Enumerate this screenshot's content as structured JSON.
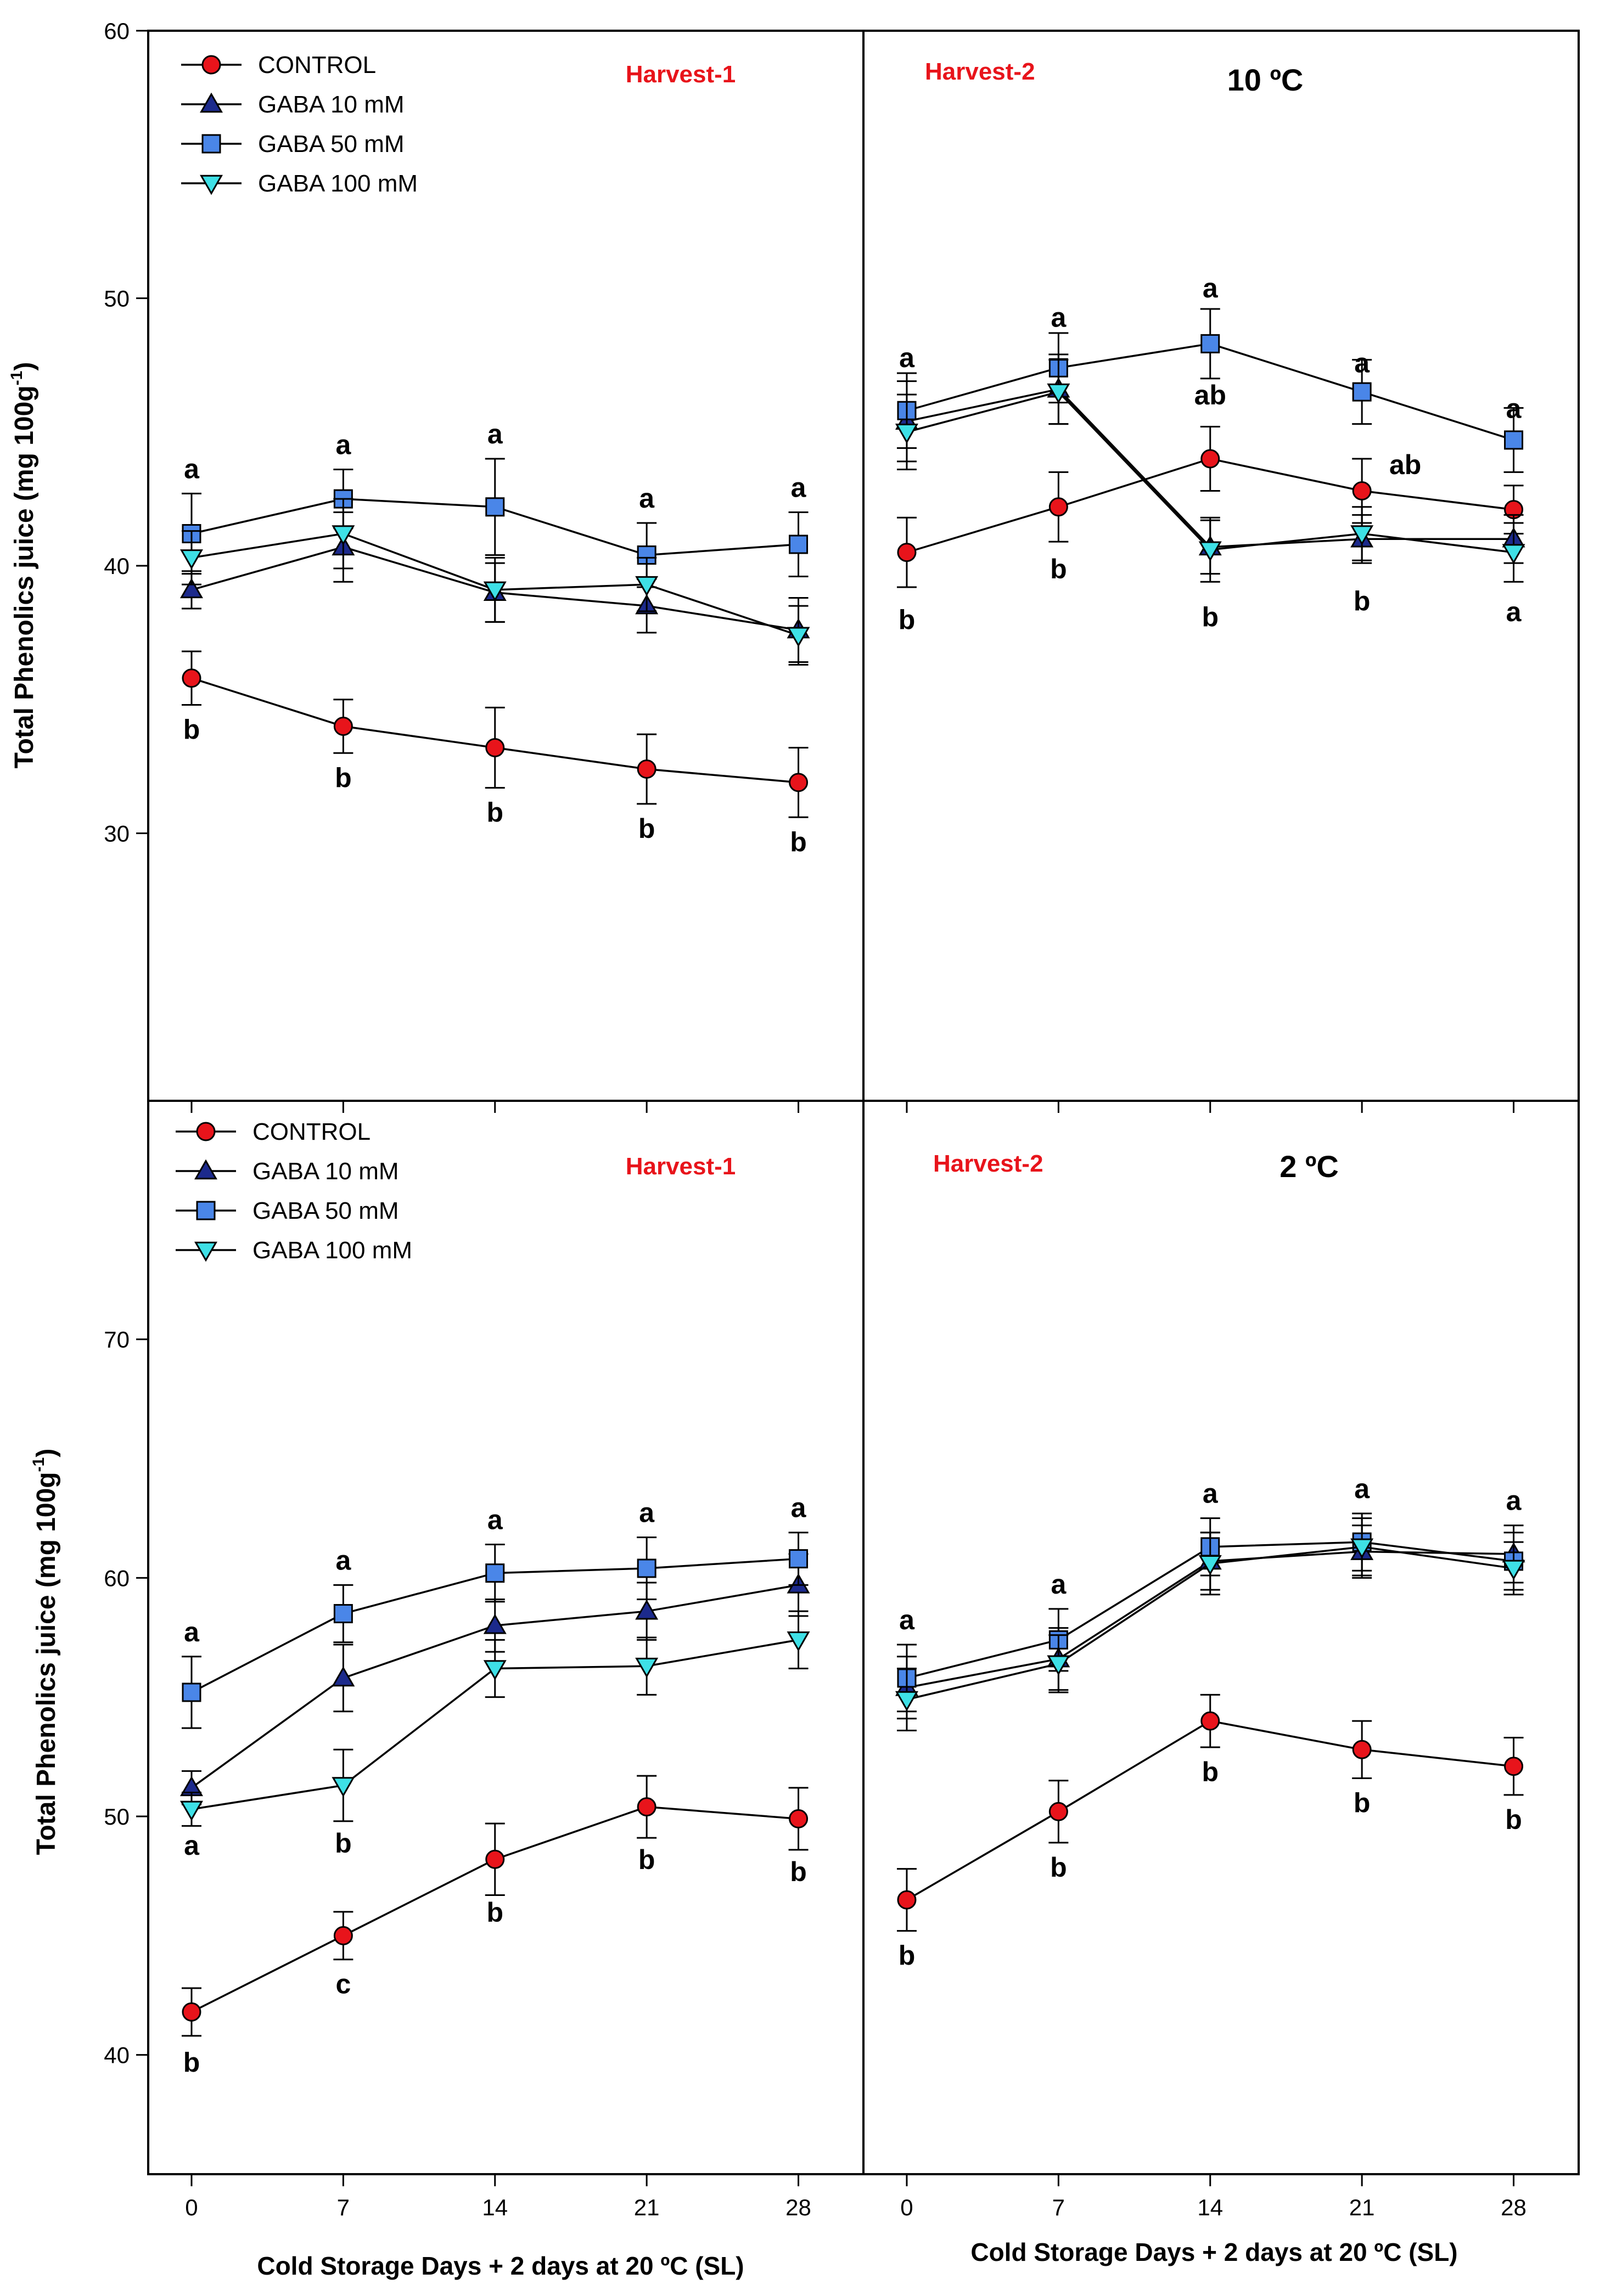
{
  "figure": {
    "ylabel_top": "Total Phenolics juice (mg 100g",
    "ylabel_bottom": "Total Phenolics juice (mg 100g",
    "ylabel_sup": "-1",
    "ylabel_close": ")",
    "xlabel": "Cold Storage Days + 2 days at 20 ºC (SL)"
  },
  "colors": {
    "control": "#e8141b",
    "gaba10": "#1c2a8c",
    "gaba50": "#4a86e8",
    "gaba100": "#3ee0e6",
    "harvest_label": "#e8141b"
  },
  "legend": {
    "entries": [
      "CONTROL",
      "GABA 10 mM",
      "GABA 50 mM",
      "GABA 100 mM"
    ],
    "markers": [
      "circle",
      "triangle-up",
      "square",
      "triangle-down"
    ]
  },
  "chart_data": [
    {
      "type": "line",
      "panel": "top-left",
      "title": "Harvest-1",
      "condition": "",
      "x": [
        0,
        7,
        14,
        21,
        28
      ],
      "xlim": [
        -2,
        31
      ],
      "ylim": [
        20,
        60
      ],
      "yticks": [
        30,
        40,
        50,
        60
      ],
      "ytick_labels": [
        "30",
        "40",
        "50",
        "60"
      ],
      "xticks": [
        0,
        7,
        14,
        21,
        28
      ],
      "series": [
        {
          "name": "CONTROL",
          "values": [
            35.8,
            34.0,
            33.2,
            32.4,
            31.9
          ],
          "errors": [
            1.0,
            1.0,
            1.5,
            1.3,
            1.3
          ]
        },
        {
          "name": "GABA 10 mM",
          "values": [
            39.1,
            40.7,
            39.0,
            38.5,
            37.6
          ],
          "errors": [
            0.7,
            1.3,
            1.1,
            1.0,
            1.2
          ]
        },
        {
          "name": "GABA 50 mM",
          "values": [
            41.2,
            42.5,
            42.2,
            40.4,
            40.8
          ],
          "errors": [
            1.5,
            1.1,
            1.8,
            1.2,
            1.2
          ]
        },
        {
          "name": "GABA 100 mM",
          "values": [
            40.3,
            41.2,
            39.1,
            39.3,
            37.4
          ],
          "errors": [
            1.0,
            1.3,
            1.2,
            1.0,
            1.1
          ]
        }
      ],
      "annotations_above": [
        "a",
        "a",
        "a",
        "a",
        "a"
      ],
      "annotations_below": [
        "b",
        "b",
        "b",
        "b",
        "b"
      ]
    },
    {
      "type": "line",
      "panel": "top-right",
      "title": "Harvest-2",
      "condition": "10 ºC",
      "x": [
        0,
        7,
        14,
        21,
        28
      ],
      "xlim": [
        -2,
        31
      ],
      "ylim": [
        20,
        60
      ],
      "yticks": [
        30,
        40,
        50,
        60
      ],
      "xticks": [
        0,
        7,
        14,
        21,
        28
      ],
      "series": [
        {
          "name": "CONTROL",
          "values": [
            40.5,
            42.2,
            44.0,
            42.8,
            42.1
          ],
          "errors": [
            1.3,
            1.3,
            1.2,
            1.2,
            0.9
          ]
        },
        {
          "name": "GABA 10 mM",
          "values": [
            45.4,
            46.6,
            40.7,
            41.0,
            41.0
          ],
          "errors": [
            1.5,
            1.3,
            1.0,
            0.9,
            0.9
          ]
        },
        {
          "name": "GABA 50 mM",
          "values": [
            45.8,
            47.4,
            48.3,
            46.5,
            44.7
          ],
          "errors": [
            1.4,
            1.3,
            1.3,
            1.2,
            1.2
          ]
        },
        {
          "name": "GABA 100 mM",
          "values": [
            45.0,
            46.5,
            40.6,
            41.2,
            40.5
          ],
          "errors": [
            1.4,
            1.2,
            1.2,
            1.0,
            1.1
          ]
        }
      ],
      "annotations": [
        {
          "x": 0,
          "y": 47.8,
          "text": "a"
        },
        {
          "x": 0,
          "y": 38.0,
          "text": "b"
        },
        {
          "x": 7,
          "y": 49.3,
          "text": "a"
        },
        {
          "x": 7,
          "y": 39.9,
          "text": "b"
        },
        {
          "x": 14,
          "y": 50.4,
          "text": "a"
        },
        {
          "x": 14,
          "y": 46.4,
          "text": "ab"
        },
        {
          "x": 14,
          "y": 38.1,
          "text": "b"
        },
        {
          "x": 21,
          "y": 47.6,
          "text": "a"
        },
        {
          "x": 23,
          "y": 43.8,
          "text": "ab"
        },
        {
          "x": 21,
          "y": 38.7,
          "text": "b"
        },
        {
          "x": 28,
          "y": 45.9,
          "text": "a"
        },
        {
          "x": 28,
          "y": 38.3,
          "text": "a"
        }
      ]
    },
    {
      "type": "line",
      "panel": "bottom-left",
      "title": "Harvest-1",
      "condition": "",
      "x": [
        0,
        7,
        14,
        21,
        28
      ],
      "xlim": [
        -2,
        31
      ],
      "ylim": [
        35,
        80
      ],
      "yticks": [
        40,
        50,
        60,
        70
      ],
      "ytick_labels": [
        "40",
        "50",
        "60",
        "70"
      ],
      "xticks": [
        0,
        7,
        14,
        21,
        28
      ],
      "xtick_labels": [
        "0",
        "7",
        "14",
        "21",
        "28"
      ],
      "series": [
        {
          "name": "CONTROL",
          "values": [
            41.8,
            45.0,
            48.2,
            50.4,
            49.9
          ],
          "errors": [
            1.0,
            1.0,
            1.5,
            1.3,
            1.3
          ]
        },
        {
          "name": "GABA 10 mM",
          "values": [
            51.2,
            55.8,
            58.0,
            58.6,
            59.7
          ],
          "errors": [
            0.7,
            1.4,
            1.1,
            1.2,
            1.3
          ]
        },
        {
          "name": "GABA 50 mM",
          "values": [
            55.2,
            58.5,
            60.2,
            60.4,
            60.8
          ],
          "errors": [
            1.5,
            1.2,
            1.2,
            1.3,
            1.1
          ]
        },
        {
          "name": "GABA 100 mM",
          "values": [
            50.3,
            51.3,
            56.2,
            56.3,
            57.4
          ],
          "errors": [
            0.7,
            1.5,
            1.2,
            1.2,
            1.2
          ]
        }
      ],
      "annotations_above": [
        "a",
        "a",
        "a",
        "a",
        "a"
      ],
      "annotations": [
        {
          "x": 0,
          "y": 48.8,
          "text": "a"
        },
        {
          "x": 0,
          "y": 39.7,
          "text": "b"
        },
        {
          "x": 7,
          "y": 48.9,
          "text": "b"
        },
        {
          "x": 7,
          "y": 43.0,
          "text": "c"
        },
        {
          "x": 14,
          "y": 46.0,
          "text": "b"
        },
        {
          "x": 21,
          "y": 48.2,
          "text": "b"
        },
        {
          "x": 28,
          "y": 47.7,
          "text": "b"
        }
      ]
    },
    {
      "type": "line",
      "panel": "bottom-right",
      "title": "Harvest-2",
      "condition": "2 ºC",
      "x": [
        0,
        7,
        14,
        21,
        28
      ],
      "xlim": [
        -2,
        31
      ],
      "ylim": [
        35,
        80
      ],
      "yticks": [
        40,
        50,
        60,
        70
      ],
      "xticks": [
        0,
        7,
        14,
        21,
        28
      ],
      "xtick_labels": [
        "0",
        "7",
        "14",
        "21",
        "28"
      ],
      "series": [
        {
          "name": "CONTROL",
          "values": [
            46.5,
            50.2,
            54.0,
            52.8,
            52.1
          ],
          "errors": [
            1.3,
            1.3,
            1.1,
            1.2,
            1.2
          ]
        },
        {
          "name": "GABA 10 mM",
          "values": [
            55.4,
            56.6,
            60.7,
            61.1,
            61.0
          ],
          "errors": [
            1.3,
            1.3,
            1.2,
            1.1,
            1.2
          ]
        },
        {
          "name": "GABA 50 mM",
          "values": [
            55.8,
            57.4,
            61.3,
            61.5,
            60.7
          ],
          "errors": [
            1.4,
            1.3,
            1.2,
            1.2,
            1.2
          ]
        },
        {
          "name": "GABA 100 mM",
          "values": [
            54.9,
            56.4,
            60.6,
            61.3,
            60.4
          ],
          "errors": [
            1.3,
            1.2,
            1.3,
            1.2,
            1.1
          ]
        }
      ],
      "annotations_above": [
        "a",
        "a",
        "a",
        "a",
        "a"
      ],
      "annotations_below": [
        "b",
        "b",
        "b",
        "b",
        "b"
      ]
    }
  ]
}
